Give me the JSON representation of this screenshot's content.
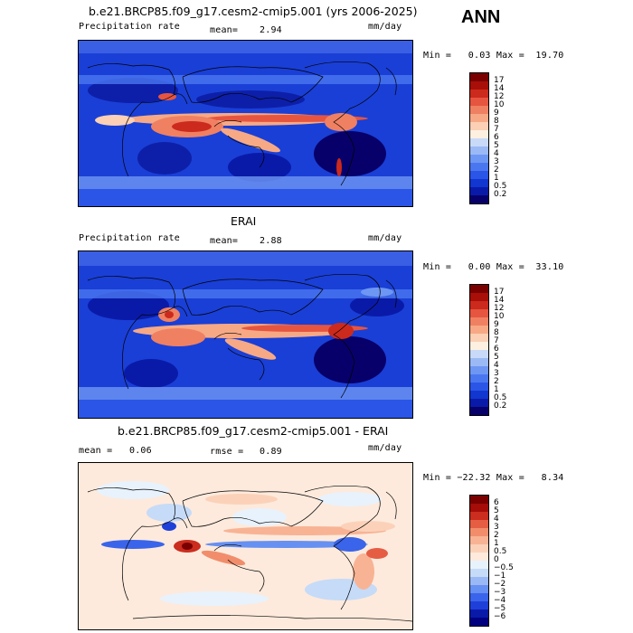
{
  "season": "ANN",
  "panels": [
    {
      "title": "b.e21.BRCP85.f09_g17.cesm2-cmip5.001 (yrs 2006-2025)",
      "left_label": "Precipitation rate",
      "mean_label": "mean=",
      "mean_value": "2.94",
      "units": "mm/day",
      "minmax_text": "Min =   0.03 Max =  19.70",
      "colorbar_ticks": [
        "17",
        "14",
        "12",
        "10",
        "9",
        "8",
        "7",
        "6",
        "5",
        "4",
        "3",
        "2",
        "1",
        "0.5",
        "0.2"
      ]
    },
    {
      "title": "ERAI",
      "left_label": "Precipitation rate",
      "mean_label": "mean=",
      "mean_value": "2.88",
      "units": "mm/day",
      "minmax_text": "Min =   0.00 Max =  33.10",
      "colorbar_ticks": [
        "17",
        "14",
        "12",
        "10",
        "9",
        "8",
        "7",
        "6",
        "5",
        "4",
        "3",
        "2",
        "1",
        "0.5",
        "0.2"
      ]
    },
    {
      "title": "b.e21.BRCP85.f09_g17.cesm2-cmip5.001 - ERAI",
      "left_label": "mean =   0.06",
      "mean_label": "rmse =",
      "mean_value": "0.89",
      "units": "mm/day",
      "minmax_text": "Min = −22.32 Max =   8.34",
      "colorbar_ticks": [
        "6",
        "5",
        "4",
        "3",
        "2",
        "1",
        "0.5",
        "0",
        "−0.5",
        "−1",
        "−2",
        "−3",
        "−4",
        "−5",
        "−6"
      ]
    }
  ],
  "colors": {
    "precip_scale": [
      "#08006a",
      "#0a1aa8",
      "#1236d0",
      "#2a55e6",
      "#4a77f0",
      "#6e97f3",
      "#9bb9f5",
      "#c8daf8",
      "#fdf0e0",
      "#fbd0b4",
      "#f7a985",
      "#f08062",
      "#e65540",
      "#cc2a1c",
      "#a80f08",
      "#7a0000"
    ],
    "diff_scale": [
      "#000080",
      "#0a1aa8",
      "#1f40d8",
      "#3a64ea",
      "#6690f1",
      "#9ab8f5",
      "#c5dbf8",
      "#e8f2fc",
      "#fdeadc",
      "#fbd2b9",
      "#f8b394",
      "#f18d6b",
      "#e55d43",
      "#cb2d1e",
      "#a40d08",
      "#7a0000"
    ]
  }
}
